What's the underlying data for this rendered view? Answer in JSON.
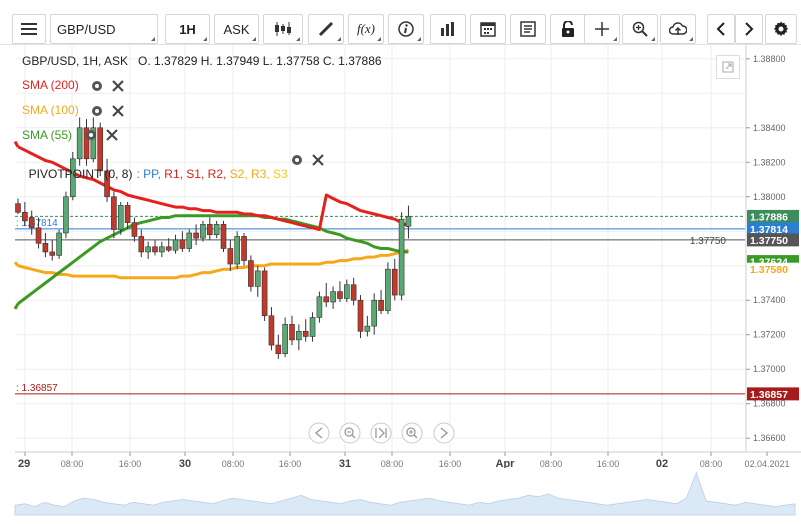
{
  "toolbar": {
    "symbol": "GBP/USD",
    "interval": "1H",
    "price_type": "ASK",
    "icons": [
      "menu-icon",
      "candles-icon",
      "draw-icon",
      "fx-icon",
      "info-icon",
      "bars-icon",
      "calendar-icon",
      "news-icon",
      "lock-icon",
      "crosshair-icon",
      "zoom-icon",
      "cloud-upload-icon",
      "chevron-left-icon",
      "chevron-right-icon",
      "gear-icon"
    ],
    "fx_label": "f(x)"
  },
  "header": {
    "ohlc": "GBP/USD, 1H, ASK   O. 1.37829 H. 1.37949 L. 1.37758 C. 1.37886"
  },
  "indicators": [
    {
      "label": "SMA (200)",
      "color": "#e5211e"
    },
    {
      "label": "SMA (100)",
      "color": "#f7a71c"
    },
    {
      "label": "SMA (55)",
      "color": "#3a9a24"
    }
  ],
  "pivot": {
    "prefix": "PIVOTPOINT (0, 8)",
    "items": [
      {
        "label": ": PP,",
        "color": "#2a7fd4"
      },
      {
        "label": " R1,",
        "color": "#d6201b"
      },
      {
        "label": " S1,",
        "color": "#d6201b"
      },
      {
        "label": " R2,",
        "color": "#d6201b"
      },
      {
        "label": " S2,",
        "color": "#f7a71c"
      },
      {
        "label": " R3,",
        "color": "#f7a71c"
      },
      {
        "label": " S3",
        "color": "#e8d21a"
      }
    ]
  },
  "chart_data": {
    "type": "candlestick",
    "symbol": "GBP/USD",
    "interval": "1H",
    "y_range": [
      1.3652,
      1.3888
    ],
    "y_ticks": [
      "1.38800",
      "1.38400",
      "1.38200",
      "1.38000",
      "1.37400",
      "1.37200",
      "1.37000",
      "1.36800",
      "1.36600"
    ],
    "x_tick_labels": [
      "29",
      "08:00",
      "16:00",
      "30",
      "08:00",
      "16:00",
      "31",
      "08:00",
      "16:00",
      "Apr",
      "08:00",
      "16:00",
      "02",
      "08:00",
      "02.04.2021"
    ],
    "candles": [
      {
        "o": 1.3796,
        "h": 1.3799,
        "l": 1.379,
        "c": 1.3791
      },
      {
        "o": 1.3791,
        "h": 1.3797,
        "l": 1.3783,
        "c": 1.3786
      },
      {
        "o": 1.3788,
        "h": 1.3792,
        "l": 1.3778,
        "c": 1.3782
      },
      {
        "o": 1.3782,
        "h": 1.3788,
        "l": 1.377,
        "c": 1.3773
      },
      {
        "o": 1.3773,
        "h": 1.3779,
        "l": 1.3765,
        "c": 1.3768
      },
      {
        "o": 1.3768,
        "h": 1.3775,
        "l": 1.3763,
        "c": 1.3766
      },
      {
        "o": 1.3766,
        "h": 1.3781,
        "l": 1.3764,
        "c": 1.3779
      },
      {
        "o": 1.3779,
        "h": 1.3803,
        "l": 1.3776,
        "c": 1.38
      },
      {
        "o": 1.38,
        "h": 1.3826,
        "l": 1.3798,
        "c": 1.3822
      },
      {
        "o": 1.3822,
        "h": 1.3846,
        "l": 1.3818,
        "c": 1.384
      },
      {
        "o": 1.384,
        "h": 1.3845,
        "l": 1.3818,
        "c": 1.3822
      },
      {
        "o": 1.3822,
        "h": 1.3846,
        "l": 1.382,
        "c": 1.384
      },
      {
        "o": 1.384,
        "h": 1.3843,
        "l": 1.3812,
        "c": 1.3815
      },
      {
        "o": 1.3815,
        "h": 1.3822,
        "l": 1.3797,
        "c": 1.38
      },
      {
        "o": 1.38,
        "h": 1.3803,
        "l": 1.3776,
        "c": 1.3781
      },
      {
        "o": 1.3781,
        "h": 1.3797,
        "l": 1.3778,
        "c": 1.3795
      },
      {
        "o": 1.3795,
        "h": 1.3797,
        "l": 1.3781,
        "c": 1.3785
      },
      {
        "o": 1.3785,
        "h": 1.3788,
        "l": 1.3774,
        "c": 1.3777
      },
      {
        "o": 1.3777,
        "h": 1.3781,
        "l": 1.3765,
        "c": 1.3768
      },
      {
        "o": 1.3768,
        "h": 1.3774,
        "l": 1.3764,
        "c": 1.3771
      },
      {
        "o": 1.3771,
        "h": 1.3775,
        "l": 1.3766,
        "c": 1.3768
      },
      {
        "o": 1.3768,
        "h": 1.3774,
        "l": 1.3765,
        "c": 1.3771
      },
      {
        "o": 1.3771,
        "h": 1.3776,
        "l": 1.3768,
        "c": 1.3769
      },
      {
        "o": 1.3769,
        "h": 1.3778,
        "l": 1.3767,
        "c": 1.3775
      },
      {
        "o": 1.3775,
        "h": 1.378,
        "l": 1.3768,
        "c": 1.377
      },
      {
        "o": 1.377,
        "h": 1.3781,
        "l": 1.3768,
        "c": 1.3779
      },
      {
        "o": 1.3779,
        "h": 1.3784,
        "l": 1.3772,
        "c": 1.3776
      },
      {
        "o": 1.3776,
        "h": 1.3786,
        "l": 1.3774,
        "c": 1.3784
      },
      {
        "o": 1.3784,
        "h": 1.3788,
        "l": 1.3775,
        "c": 1.3778
      },
      {
        "o": 1.3778,
        "h": 1.3786,
        "l": 1.3776,
        "c": 1.3784
      },
      {
        "o": 1.3784,
        "h": 1.3786,
        "l": 1.3768,
        "c": 1.377
      },
      {
        "o": 1.377,
        "h": 1.3775,
        "l": 1.3757,
        "c": 1.3761
      },
      {
        "o": 1.3761,
        "h": 1.378,
        "l": 1.3758,
        "c": 1.3777
      },
      {
        "o": 1.3777,
        "h": 1.3779,
        "l": 1.376,
        "c": 1.3763
      },
      {
        "o": 1.3763,
        "h": 1.3766,
        "l": 1.3745,
        "c": 1.3748
      },
      {
        "o": 1.3748,
        "h": 1.376,
        "l": 1.3742,
        "c": 1.3757
      },
      {
        "o": 1.3757,
        "h": 1.3759,
        "l": 1.3728,
        "c": 1.3731
      },
      {
        "o": 1.3731,
        "h": 1.3736,
        "l": 1.3711,
        "c": 1.3714
      },
      {
        "o": 1.3714,
        "h": 1.372,
        "l": 1.3706,
        "c": 1.3709
      },
      {
        "o": 1.3709,
        "h": 1.373,
        "l": 1.3707,
        "c": 1.3726
      },
      {
        "o": 1.3726,
        "h": 1.3731,
        "l": 1.3714,
        "c": 1.3717
      },
      {
        "o": 1.3717,
        "h": 1.3726,
        "l": 1.3711,
        "c": 1.3722
      },
      {
        "o": 1.3722,
        "h": 1.3729,
        "l": 1.3716,
        "c": 1.3719
      },
      {
        "o": 1.3719,
        "h": 1.3733,
        "l": 1.3716,
        "c": 1.373
      },
      {
        "o": 1.373,
        "h": 1.3745,
        "l": 1.3727,
        "c": 1.3742
      },
      {
        "o": 1.3742,
        "h": 1.375,
        "l": 1.3736,
        "c": 1.3739
      },
      {
        "o": 1.3739,
        "h": 1.3748,
        "l": 1.3735,
        "c": 1.3745
      },
      {
        "o": 1.3745,
        "h": 1.3751,
        "l": 1.3739,
        "c": 1.3741
      },
      {
        "o": 1.3741,
        "h": 1.3752,
        "l": 1.3739,
        "c": 1.3749
      },
      {
        "o": 1.3749,
        "h": 1.3753,
        "l": 1.3737,
        "c": 1.374
      },
      {
        "o": 1.374,
        "h": 1.3743,
        "l": 1.3718,
        "c": 1.3722
      },
      {
        "o": 1.3722,
        "h": 1.3731,
        "l": 1.3719,
        "c": 1.3725
      },
      {
        "o": 1.3725,
        "h": 1.3744,
        "l": 1.372,
        "c": 1.374
      },
      {
        "o": 1.374,
        "h": 1.3746,
        "l": 1.3732,
        "c": 1.3734
      },
      {
        "o": 1.3734,
        "h": 1.3762,
        "l": 1.3732,
        "c": 1.3758
      },
      {
        "o": 1.3758,
        "h": 1.3764,
        "l": 1.374,
        "c": 1.3743
      },
      {
        "o": 1.3743,
        "h": 1.3791,
        "l": 1.374,
        "c": 1.3787
      },
      {
        "o": 1.37829,
        "h": 1.37949,
        "l": 1.37758,
        "c": 1.37886
      }
    ],
    "sma200": [
      1.3829,
      1.3827,
      1.3825,
      1.3823,
      1.3821,
      1.382,
      1.3818,
      1.3816,
      1.3814,
      1.3812,
      1.3811,
      1.381,
      1.3808,
      1.3806,
      1.3804,
      1.3803,
      1.3801,
      1.38,
      1.3799,
      1.3798,
      1.3797,
      1.3796,
      1.3795,
      1.3794,
      1.3794,
      1.3793,
      1.3793,
      1.3792,
      1.3792,
      1.3791,
      1.3791,
      1.3791,
      1.3791,
      1.379,
      1.379,
      1.3789,
      1.3789,
      1.3788,
      1.3787,
      1.3786,
      1.3785,
      1.3784,
      1.3783,
      1.3782,
      1.3781,
      1.3801,
      1.3799,
      1.3797,
      1.3796,
      1.3794,
      1.3792,
      1.3791,
      1.379,
      1.3789,
      1.3788,
      1.3787,
      1.3785,
      1.3783
    ],
    "sma100": [
      1.376,
      1.3759,
      1.3758,
      1.3757,
      1.3756,
      1.3756,
      1.3755,
      1.3755,
      1.3754,
      1.3754,
      1.3754,
      1.3754,
      1.3754,
      1.3754,
      1.3754,
      1.3753,
      1.3753,
      1.3753,
      1.3753,
      1.3753,
      1.3753,
      1.3753,
      1.3753,
      1.3753,
      1.3754,
      1.3754,
      1.3755,
      1.3756,
      1.3756,
      1.3757,
      1.3758,
      1.3758,
      1.3759,
      1.3759,
      1.376,
      1.376,
      1.376,
      1.3761,
      1.3761,
      1.3761,
      1.3761,
      1.3761,
      1.3761,
      1.3761,
      1.3761,
      1.3762,
      1.3762,
      1.3763,
      1.3763,
      1.3764,
      1.3764,
      1.3765,
      1.3765,
      1.3766,
      1.3766,
      1.3767,
      1.3768,
      1.3769
    ],
    "sma55": [
      1.3738,
      1.3741,
      1.3744,
      1.3747,
      1.375,
      1.3753,
      1.3756,
      1.3759,
      1.3762,
      1.3765,
      1.3768,
      1.3771,
      1.3774,
      1.3776,
      1.3778,
      1.378,
      1.3782,
      1.3784,
      1.3785,
      1.3786,
      1.3787,
      1.3788,
      1.3788,
      1.3789,
      1.3789,
      1.3789,
      1.3789,
      1.3789,
      1.3789,
      1.3789,
      1.3789,
      1.3789,
      1.3789,
      1.3789,
      1.3789,
      1.3789,
      1.3788,
      1.3788,
      1.3787,
      1.3787,
      1.3786,
      1.3785,
      1.3784,
      1.3783,
      1.3782,
      1.378,
      1.3779,
      1.3778,
      1.3776,
      1.3775,
      1.3774,
      1.3773,
      1.3771,
      1.377,
      1.377,
      1.3769,
      1.3768,
      1.3768
    ],
    "horizontal_lines": [
      {
        "value": 1.37886,
        "label": "1.37886",
        "color": "#3c8c5c",
        "style": "dashed"
      },
      {
        "value": 1.37814,
        "label": "1.37814",
        "color": "#2a7fd4",
        "style": "solid"
      },
      {
        "value": 1.3775,
        "label": "1.37750",
        "color": "#555555",
        "style": "solid"
      },
      {
        "value": 1.37624,
        "label": "1.37624",
        "color": "#3a9a24",
        "style": "none"
      },
      {
        "value": 1.3758,
        "label": "1.37580",
        "color": "#f7a71c",
        "style": "none"
      },
      {
        "value": 1.36857,
        "label": "1.36857",
        "color": "#a81b1b",
        "style": "solid"
      }
    ],
    "left_labels": [
      {
        "value": 1.37814,
        "label": ": 1.37814",
        "color": "#2a7fd4"
      },
      {
        "value": 1.36857,
        "label": ": 1.36857",
        "color": "#a81b1b"
      }
    ],
    "inline_label": "1.37750",
    "volume": [
      7,
      8,
      6,
      9,
      7,
      6,
      10,
      12,
      11,
      9,
      8,
      7,
      9,
      8,
      7,
      9,
      10,
      11,
      10,
      9,
      8,
      10,
      12,
      11,
      10,
      9,
      8,
      10,
      12,
      14,
      11,
      10,
      9,
      8,
      10,
      11,
      9,
      8,
      7,
      9,
      10,
      11,
      12,
      10,
      9,
      8,
      7,
      9,
      8,
      10,
      11,
      12,
      14,
      13,
      15,
      12,
      11,
      10,
      9,
      8,
      7,
      8,
      9,
      10,
      11,
      10,
      9,
      8,
      12,
      30,
      10,
      9,
      8,
      7,
      9,
      8,
      7,
      6,
      7,
      8
    ]
  }
}
